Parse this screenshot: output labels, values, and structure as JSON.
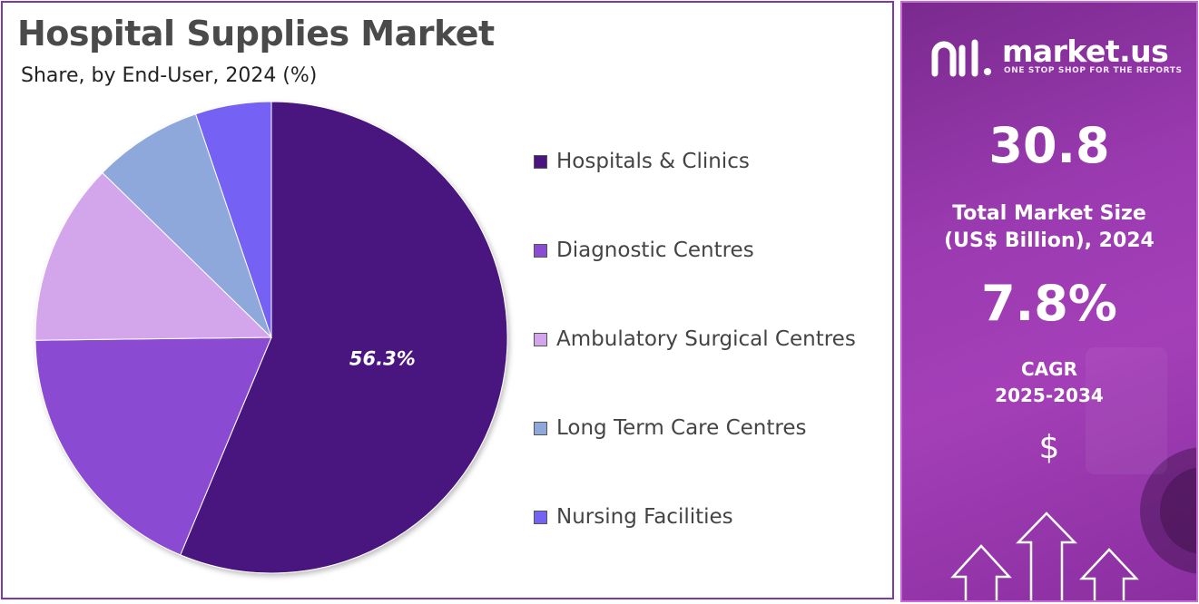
{
  "title": "Hospital Supplies Market",
  "subtitle": "Share, by End-User, 2024 (%)",
  "chart_data": {
    "type": "pie",
    "categories": [
      "Hospitals & Clinics",
      "Diagnostic Centres",
      "Ambulatory Surgical Centres",
      "Long Term Care Centres",
      "Nursing Facilities"
    ],
    "values": [
      56.3,
      18.5,
      12.5,
      7.5,
      5.2
    ],
    "colors": [
      "#4a1580",
      "#8a4cd2",
      "#d3a6ec",
      "#8fa8dc",
      "#7462f5"
    ],
    "data_labels": [
      "56.3%",
      null,
      null,
      null,
      null
    ],
    "legend_position": "right"
  },
  "sidebar": {
    "brand": "market.us",
    "tagline": "ONE STOP SHOP FOR THE REPORTS",
    "market_size": "30.8",
    "market_size_label_line1": "Total Market Size",
    "market_size_label_line2": "(US$ Billion), 2024",
    "cagr": "7.8%",
    "cagr_label_line1": "CAGR",
    "cagr_label_line2": "2025-2034",
    "currency_symbol": "$"
  }
}
